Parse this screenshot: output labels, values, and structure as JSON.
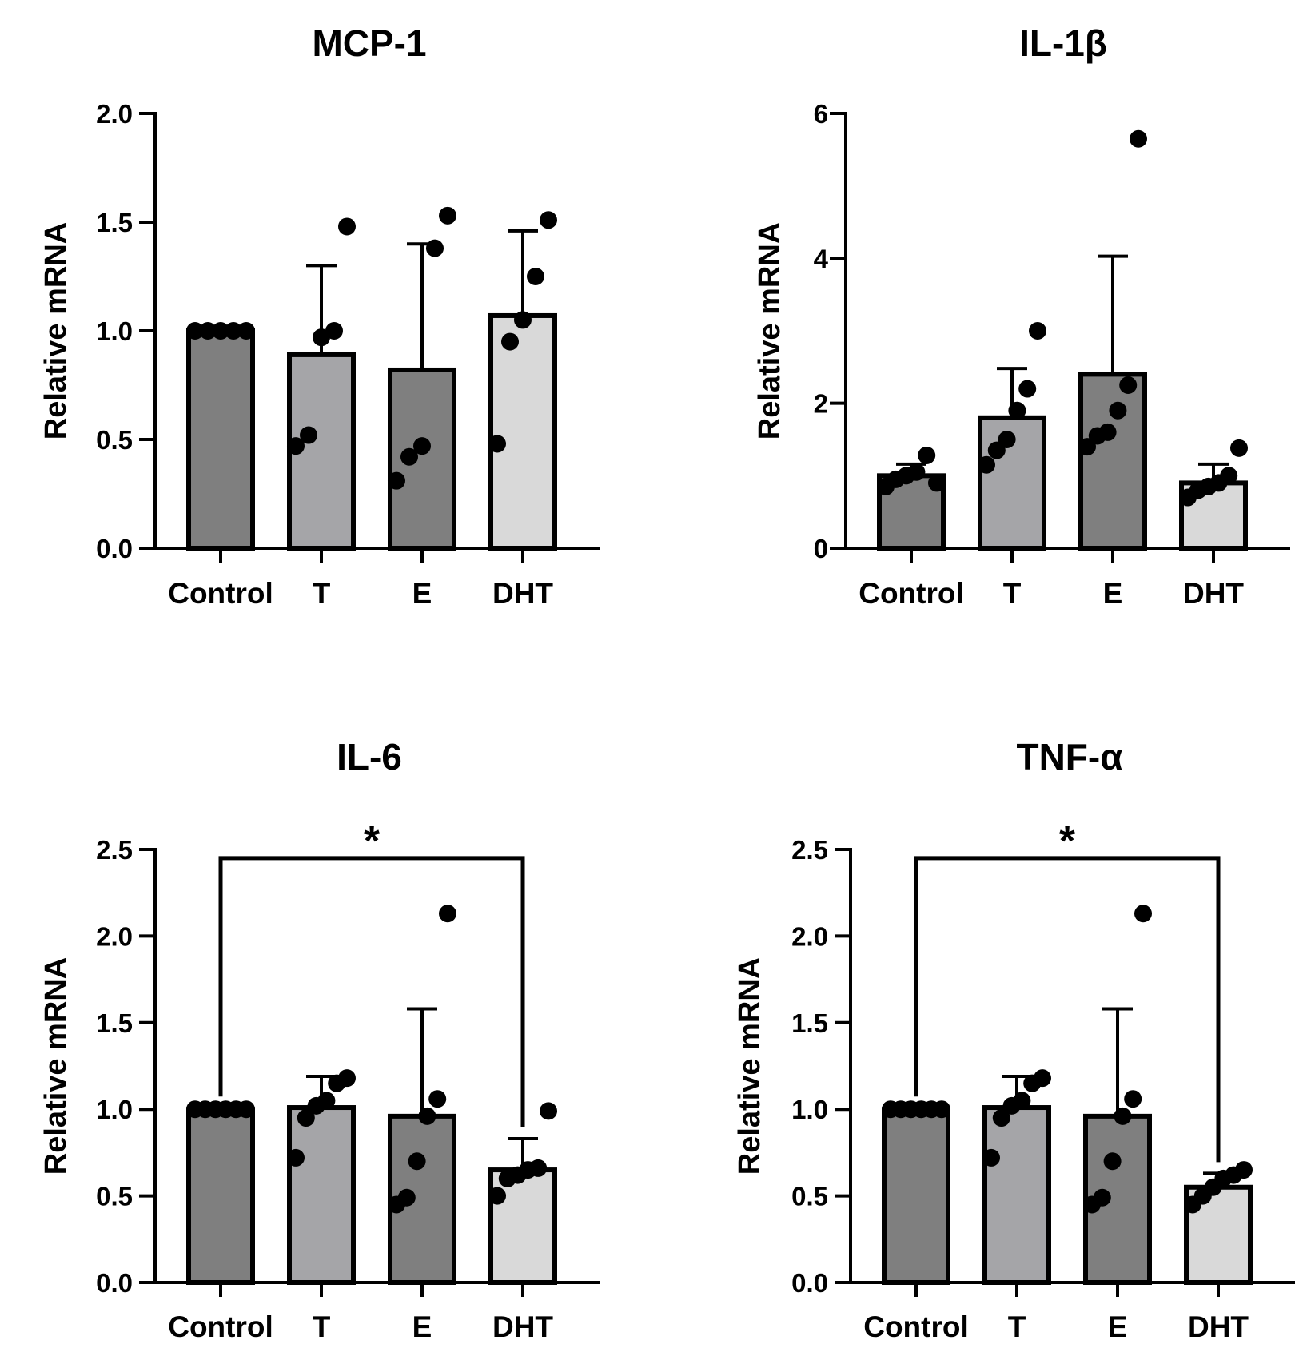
{
  "figure": {
    "ylabel": "Relative mRNA",
    "categories": [
      "Control",
      "T",
      "E",
      "DHT"
    ],
    "colors": {
      "Control": "#7f7f7f",
      "T": "#a5a5a8",
      "E": "#7f7f7f",
      "DHT": "#d9d9d9"
    }
  },
  "chart_data": [
    {
      "type": "bar",
      "title": "MCP-1",
      "ylabel": "Relative mRNA",
      "categories": [
        "Control",
        "T",
        "E",
        "DHT"
      ],
      "ylim": [
        0,
        2.0
      ],
      "yticks": [
        0.0,
        0.5,
        1.0,
        1.5,
        2.0
      ],
      "ytick_labels": [
        "0.0",
        "0.5",
        "1.0",
        "1.5",
        "2.0"
      ],
      "means": [
        1.0,
        0.89,
        0.82,
        1.07
      ],
      "sd": [
        0,
        0.41,
        0.58,
        0.39
      ],
      "points": [
        [
          1.0,
          1.0,
          1.0,
          1.0,
          1.0
        ],
        [
          0.47,
          0.52,
          0.97,
          1.0,
          1.48
        ],
        [
          0.31,
          0.42,
          0.47,
          1.38,
          1.53
        ],
        [
          0.48,
          0.95,
          1.05,
          1.25,
          1.51
        ]
      ],
      "significance": null
    },
    {
      "type": "bar",
      "title": "IL-1β",
      "ylabel": "Relative mRNA",
      "categories": [
        "Control",
        "T",
        "E",
        "DHT"
      ],
      "ylim": [
        0,
        6
      ],
      "yticks": [
        0,
        2,
        4,
        6
      ],
      "ytick_labels": [
        "0",
        "2",
        "4",
        "6"
      ],
      "means": [
        1.0,
        1.8,
        2.4,
        0.9
      ],
      "sd": [
        0.16,
        0.68,
        1.63,
        0.26
      ],
      "points": [
        [
          0.85,
          0.95,
          1.0,
          1.05,
          1.28,
          0.9
        ],
        [
          1.15,
          1.35,
          1.5,
          1.9,
          2.2,
          3.0
        ],
        [
          1.4,
          1.55,
          1.6,
          1.9,
          2.25,
          5.65
        ],
        [
          0.7,
          0.8,
          0.85,
          0.9,
          1.0,
          1.38
        ]
      ],
      "significance": null
    },
    {
      "type": "bar",
      "title": "IL-6",
      "ylabel": "Relative mRNA",
      "categories": [
        "Control",
        "T",
        "E",
        "DHT"
      ],
      "ylim": [
        0,
        2.5
      ],
      "yticks": [
        0.0,
        0.5,
        1.0,
        1.5,
        2.0,
        2.5
      ],
      "ytick_labels": [
        "0.0",
        "0.5",
        "1.0",
        "1.5",
        "2.0",
        "2.5"
      ],
      "means": [
        1.0,
        1.01,
        0.96,
        0.65
      ],
      "sd": [
        0,
        0.18,
        0.62,
        0.18
      ],
      "points": [
        [
          1.0,
          1.0,
          1.0,
          1.0,
          1.0,
          1.0
        ],
        [
          0.72,
          0.95,
          1.02,
          1.05,
          1.15,
          1.18
        ],
        [
          0.45,
          0.49,
          0.7,
          0.96,
          1.06,
          2.13
        ],
        [
          0.5,
          0.6,
          0.62,
          0.65,
          0.66,
          0.99
        ]
      ],
      "significance": {
        "from": "Control",
        "to": "DHT",
        "label": "*",
        "y": 2.45
      }
    },
    {
      "type": "bar",
      "title": "TNF-α",
      "ylabel": "Relative mRNA",
      "categories": [
        "Control",
        "T",
        "E",
        "DHT"
      ],
      "ylim": [
        0,
        2.5
      ],
      "yticks": [
        0.0,
        0.5,
        1.0,
        1.5,
        2.0,
        2.5
      ],
      "ytick_labels": [
        "0.0",
        "0.5",
        "1.0",
        "1.5",
        "2.0",
        "2.5"
      ],
      "means": [
        1.0,
        1.01,
        0.96,
        0.55
      ],
      "sd": [
        0,
        0.18,
        0.62,
        0.08
      ],
      "points": [
        [
          1.0,
          1.0,
          1.0,
          1.0,
          1.0,
          1.0
        ],
        [
          0.72,
          0.95,
          1.02,
          1.05,
          1.15,
          1.18
        ],
        [
          0.45,
          0.49,
          0.7,
          0.96,
          1.06,
          2.13
        ],
        [
          0.45,
          0.5,
          0.55,
          0.6,
          0.62,
          0.65
        ]
      ],
      "significance": {
        "from": "Control",
        "to": "DHT",
        "label": "*",
        "y": 2.45
      }
    }
  ]
}
